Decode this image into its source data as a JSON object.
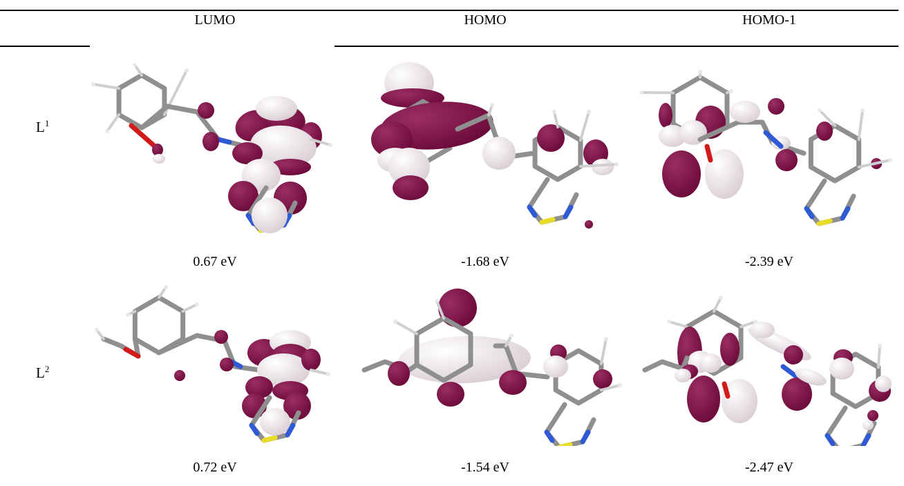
{
  "table": {
    "headers": [
      "LUMO",
      "HOMO",
      "HOMO-1"
    ],
    "rows": [
      {
        "label": "L",
        "sup": "1",
        "energies": [
          "0.67 eV",
          "-1.68 eV",
          "-2.39 eV"
        ]
      },
      {
        "label": "L",
        "sup": "2",
        "energies": [
          "0.72 eV",
          "-1.54 eV",
          "-2.47 eV"
        ]
      }
    ]
  },
  "colors": {
    "lobe_positive": "#6b0a3a",
    "lobe_negative": "#f1e9ee",
    "bond": "#8f8f8f",
    "nitrogen": "#2f5ad6",
    "sulfur": "#e8dc2a",
    "oxygen": "#d21a1a"
  }
}
